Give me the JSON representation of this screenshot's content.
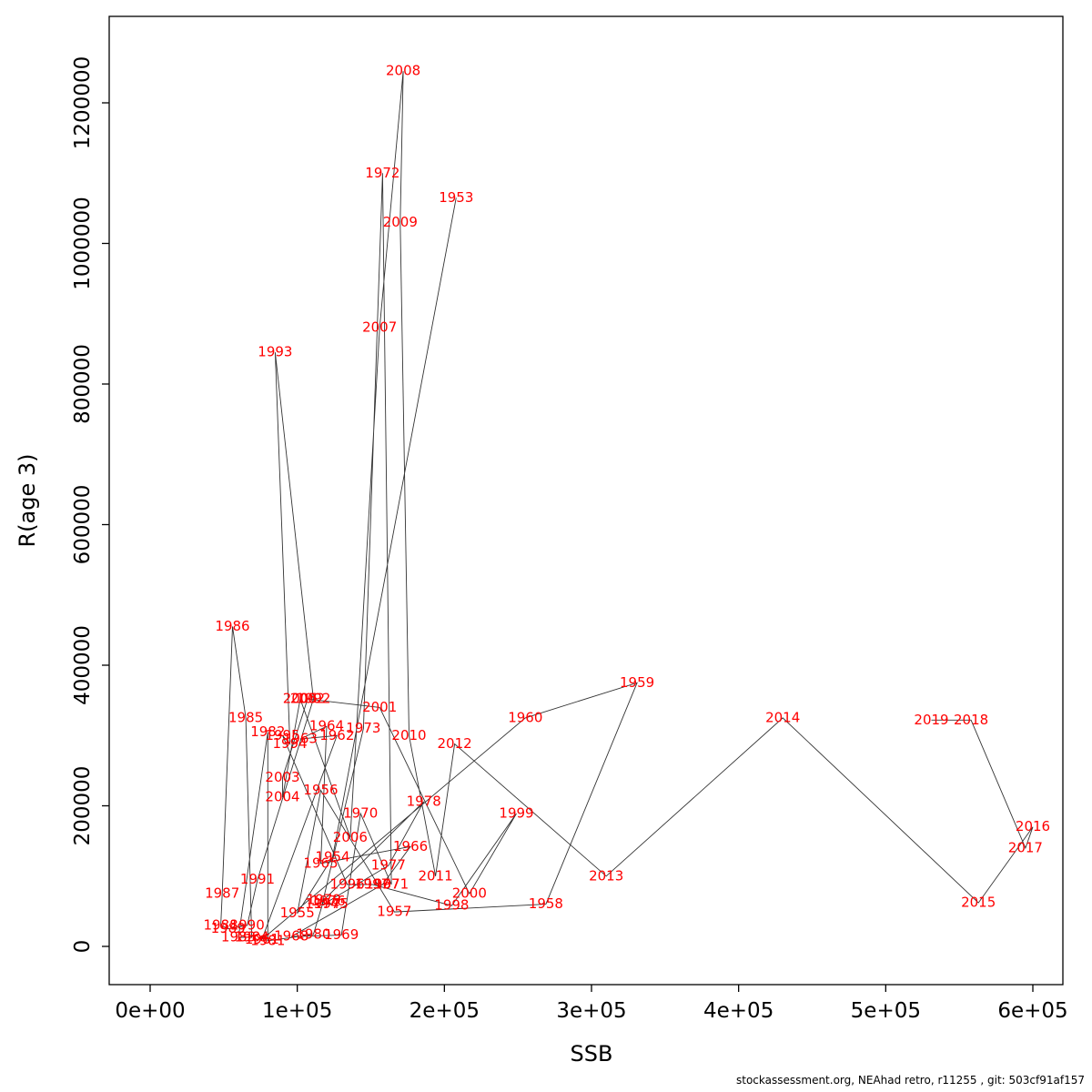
{
  "figure": {
    "footer": "stockassessment.org, NEAhad retro, r11255 , git: 503cf91af157"
  },
  "chart_data": {
    "type": "scatter",
    "title": "",
    "xlabel": "SSB",
    "ylabel": "R(age 3)",
    "xlim": [
      0,
      600000
    ],
    "ylim": [
      0,
      1300000
    ],
    "grid": false,
    "legend": "none",
    "connect_points_in_year_order": true,
    "label_color": "#ff0000",
    "line_color": "#333333",
    "axis_color": "#000000",
    "x_ticks": {
      "values": [
        0,
        100000,
        200000,
        300000,
        400000,
        500000,
        600000
      ],
      "labels": [
        "0e+00",
        "1e+05",
        "2e+05",
        "3e+05",
        "4e+05",
        "5e+05",
        "6e+05"
      ]
    },
    "y_ticks": {
      "values": [
        0,
        200000,
        400000,
        600000,
        800000,
        1000000,
        1200000
      ],
      "labels": [
        "0",
        "200000",
        "400000",
        "600000",
        "800000",
        "1000000",
        "1200000"
      ]
    },
    "points": [
      {
        "year": 1953,
        "ssb": 208000,
        "r": 1065000
      },
      {
        "year": 1954,
        "ssb": 124000,
        "r": 127000
      },
      {
        "year": 1955,
        "ssb": 100000,
        "r": 47000
      },
      {
        "year": 1956,
        "ssb": 116000,
        "r": 222000
      },
      {
        "year": 1957,
        "ssb": 166000,
        "r": 49000
      },
      {
        "year": 1958,
        "ssb": 269000,
        "r": 60000
      },
      {
        "year": 1959,
        "ssb": 331000,
        "r": 375000
      },
      {
        "year": 1960,
        "ssb": 255000,
        "r": 325000
      },
      {
        "year": 1961,
        "ssb": 76000,
        "r": 10000
      },
      {
        "year": 1962,
        "ssb": 127000,
        "r": 300000
      },
      {
        "year": 1963,
        "ssb": 102000,
        "r": 295000
      },
      {
        "year": 1964,
        "ssb": 120000,
        "r": 313000
      },
      {
        "year": 1965,
        "ssb": 116000,
        "r": 118000
      },
      {
        "year": 1966,
        "ssb": 177000,
        "r": 142000
      },
      {
        "year": 1967,
        "ssb": 158000,
        "r": 88000
      },
      {
        "year": 1968,
        "ssb": 96000,
        "r": 14000
      },
      {
        "year": 1969,
        "ssb": 130000,
        "r": 16000
      },
      {
        "year": 1970,
        "ssb": 143000,
        "r": 189000
      },
      {
        "year": 1971,
        "ssb": 164000,
        "r": 88000
      },
      {
        "year": 1972,
        "ssb": 158000,
        "r": 1100000
      },
      {
        "year": 1973,
        "ssb": 145000,
        "r": 310000
      },
      {
        "year": 1974,
        "ssb": 117000,
        "r": 60000
      },
      {
        "year": 1975,
        "ssb": 123000,
        "r": 60000
      },
      {
        "year": 1976,
        "ssb": 121000,
        "r": 64000
      },
      {
        "year": 1977,
        "ssb": 162000,
        "r": 115000
      },
      {
        "year": 1978,
        "ssb": 186000,
        "r": 206000
      },
      {
        "year": 1979,
        "ssb": 118000,
        "r": 66000
      },
      {
        "year": 1980,
        "ssb": 111000,
        "r": 17000
      },
      {
        "year": 1981,
        "ssb": 80000,
        "r": 8000
      },
      {
        "year": 1982,
        "ssb": 80000,
        "r": 305000
      },
      {
        "year": 1983,
        "ssb": 60000,
        "r": 13000
      },
      {
        "year": 1984,
        "ssb": 69000,
        "r": 13000
      },
      {
        "year": 1985,
        "ssb": 65000,
        "r": 325000
      },
      {
        "year": 1986,
        "ssb": 56000,
        "r": 455000
      },
      {
        "year": 1987,
        "ssb": 49000,
        "r": 75000
      },
      {
        "year": 1988,
        "ssb": 48000,
        "r": 30000
      },
      {
        "year": 1989,
        "ssb": 53000,
        "r": 25000
      },
      {
        "year": 1990,
        "ssb": 66000,
        "r": 30000
      },
      {
        "year": 1991,
        "ssb": 73000,
        "r": 95000
      },
      {
        "year": 1992,
        "ssb": 111000,
        "r": 352000
      },
      {
        "year": 1993,
        "ssb": 85000,
        "r": 845000
      },
      {
        "year": 1994,
        "ssb": 95000,
        "r": 288000
      },
      {
        "year": 1995,
        "ssb": 90000,
        "r": 300000
      },
      {
        "year": 1996,
        "ssb": 134000,
        "r": 88000
      },
      {
        "year": 1997,
        "ssb": 151000,
        "r": 88000
      },
      {
        "year": 1998,
        "ssb": 205000,
        "r": 58000
      },
      {
        "year": 1999,
        "ssb": 249000,
        "r": 189000
      },
      {
        "year": 2000,
        "ssb": 217000,
        "r": 75000
      },
      {
        "year": 2001,
        "ssb": 156000,
        "r": 340000
      },
      {
        "year": 2002,
        "ssb": 107000,
        "r": 352000
      },
      {
        "year": 2003,
        "ssb": 90000,
        "r": 240000
      },
      {
        "year": 2004,
        "ssb": 90000,
        "r": 212000
      },
      {
        "year": 2005,
        "ssb": 102000,
        "r": 352000
      },
      {
        "year": 2006,
        "ssb": 136000,
        "r": 155000
      },
      {
        "year": 2007,
        "ssb": 156000,
        "r": 880000
      },
      {
        "year": 2008,
        "ssb": 172000,
        "r": 1245000
      },
      {
        "year": 2009,
        "ssb": 170000,
        "r": 1030000
      },
      {
        "year": 2010,
        "ssb": 176000,
        "r": 300000
      },
      {
        "year": 2011,
        "ssb": 194000,
        "r": 100000
      },
      {
        "year": 2012,
        "ssb": 207000,
        "r": 288000
      },
      {
        "year": 2013,
        "ssb": 310000,
        "r": 100000
      },
      {
        "year": 2014,
        "ssb": 430000,
        "r": 325000
      },
      {
        "year": 2015,
        "ssb": 563000,
        "r": 62000
      },
      {
        "year": 2016,
        "ssb": 600000,
        "r": 170000
      },
      {
        "year": 2017,
        "ssb": 595000,
        "r": 140000
      },
      {
        "year": 2018,
        "ssb": 558000,
        "r": 322000
      },
      {
        "year": 2019,
        "ssb": 531000,
        "r": 322000
      }
    ]
  }
}
